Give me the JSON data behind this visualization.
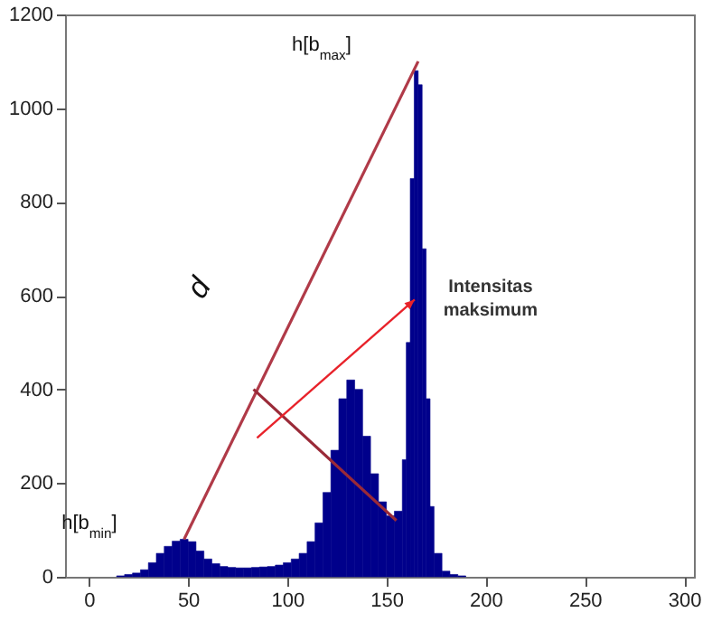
{
  "chart_data": {
    "type": "histogram",
    "xlim": [
      -12,
      305
    ],
    "xticks": [
      0,
      50,
      100,
      150,
      200,
      250,
      300
    ],
    "ylim": [
      0,
      1200
    ],
    "yticks": [
      0,
      200,
      400,
      600,
      800,
      1000,
      1200
    ],
    "series": [
      {
        "color": "#00008b",
        "bins": [
          14,
          18,
          22,
          26,
          30,
          34,
          38,
          42,
          46,
          50,
          54,
          58,
          62,
          66,
          70,
          74,
          78,
          82,
          86,
          90,
          94,
          98,
          102,
          106,
          110,
          114,
          118,
          122,
          126,
          130,
          134,
          138,
          142,
          146,
          150,
          154,
          158,
          160,
          162,
          164,
          166,
          168,
          170,
          172,
          174,
          178,
          182,
          186,
          190
        ],
        "values": [
          2,
          5,
          8,
          15,
          30,
          50,
          65,
          76,
          80,
          75,
          55,
          38,
          28,
          22,
          20,
          19,
          19,
          20,
          21,
          22,
          25,
          30,
          38,
          50,
          75,
          115,
          180,
          270,
          380,
          420,
          400,
          300,
          220,
          160,
          130,
          140,
          250,
          500,
          850,
          1080,
          1050,
          700,
          380,
          150,
          50,
          12,
          5,
          2
        ]
      },
      {
        "type": "line",
        "color": "#b03a48",
        "x": [
          48,
          166
        ],
        "values": [
          80,
          1100
        ]
      },
      {
        "type": "line",
        "color": "#9a2a38",
        "x": [
          83,
          155
        ],
        "values": [
          400,
          120
        ]
      }
    ],
    "annotations": [
      "h[b$_{max}$]",
      "h[b$_{min}$]",
      "d",
      "Intensitas maksimum"
    ]
  }
}
